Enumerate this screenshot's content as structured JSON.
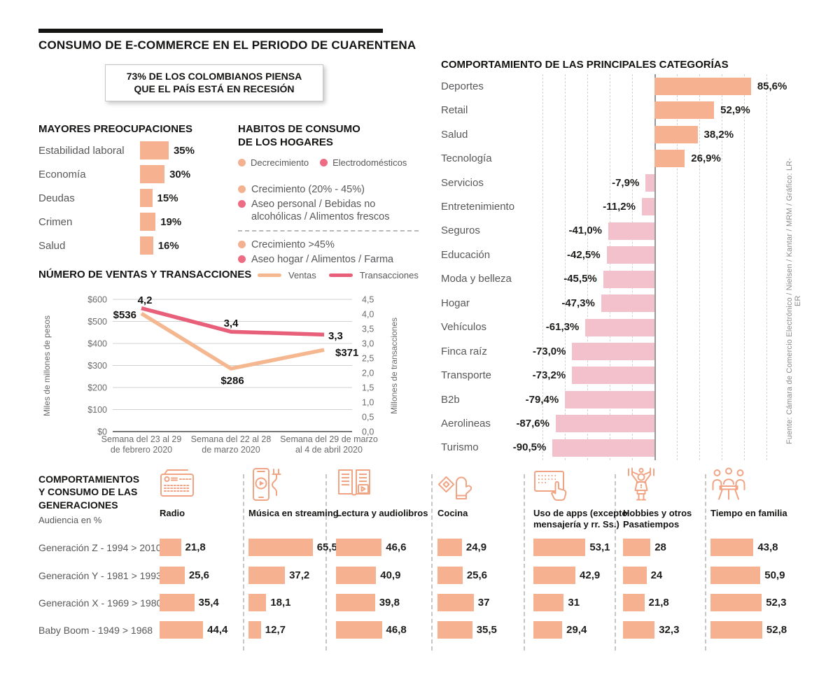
{
  "header": {
    "title": "CONSUMO DE E-COMMERCE EN EL PERIODO DE CUARENTENA",
    "recession_line1": "73% DE LOS COLOMBIANOS PIENSA",
    "recession_line2": "QUE EL PAÍS ESTÁ EN RECESIÓN"
  },
  "habits": {
    "title_line1": "HABITOS DE CONSUMO",
    "title_line2": "DE LOS HOGARES",
    "top_legend": [
      {
        "color": "peach",
        "label": "Decrecimiento"
      },
      {
        "color": "pink",
        "label": "Electrodomésticos"
      }
    ],
    "groups": [
      {
        "items": [
          {
            "color": "peach",
            "label": "Crecimiento (20% - 45%)"
          },
          {
            "color": "pink",
            "label": "Aseo personal /  Bebidas no alcohólicas / Alimentos frescos"
          }
        ]
      },
      {
        "items": [
          {
            "color": "peach",
            "label": "Crecimiento >45%"
          },
          {
            "color": "pink",
            "label": "Aseo hogar /  Alimentos / Farma"
          }
        ]
      }
    ]
  },
  "source_note": "Fuente: Cámara de Comercio Electrónico / Nielsen / Kantar / MRM / Gráfico: LR-ER",
  "colors": {
    "peach": "#F5B190",
    "peach_dot": "#F3B18F",
    "pink_dot": "#EE6B84",
    "pink_bar": "#F3C1CB",
    "ventas_line": "#F5B78F",
    "transacciones_line": "#E85F79",
    "icon_stroke": "#F0A483",
    "text_dark": "#141412",
    "text_gray": "#58585A"
  },
  "chart_data": [
    {
      "id": "concerns",
      "type": "bar",
      "orientation": "horizontal",
      "title": "MAYORES PREOCUPACIONES",
      "categories": [
        "Estabilidad laboral",
        "Economía",
        "Deudas",
        "Crimen",
        "Salud"
      ],
      "values": [
        35,
        30,
        15,
        19,
        16
      ],
      "value_labels": [
        "35%",
        "30%",
        "15%",
        "19%",
        "16%"
      ],
      "xlim": [
        0,
        100
      ]
    },
    {
      "id": "sales",
      "type": "line",
      "title": "NÚMERO DE VENTAS Y TRANSACCIONES",
      "x": [
        [
          "Semana del 23 al 29",
          "de febrero 2020"
        ],
        [
          "Semana del 22 al 28",
          "de marzo 2020"
        ],
        [
          "Semana del 29 de marzo",
          "al 4 de abril 2020"
        ]
      ],
      "series": [
        {
          "name": "Ventas",
          "axis": "left",
          "values": [
            536,
            286,
            371
          ],
          "labels": [
            "$536",
            "$286",
            "$371"
          ]
        },
        {
          "name": "Transacciones",
          "axis": "right",
          "values": [
            4.2,
            3.4,
            3.3
          ],
          "labels": [
            "4,2",
            "3,4",
            "3,3"
          ]
        }
      ],
      "left_axis": {
        "label": "Miles de millones de pesos",
        "min": 0,
        "max": 600,
        "ticks": [
          "$600",
          "$500",
          "$400",
          "$300",
          "$200",
          "$100",
          "$0"
        ]
      },
      "right_axis": {
        "label": "Millones de transacciones",
        "min": 0,
        "max": 4.5,
        "ticks": [
          "4,5",
          "4,0",
          "3,5",
          "3,0",
          "2,5",
          "2,0",
          "1,5",
          "1,0",
          "0,5",
          "0,0"
        ]
      },
      "grid": true,
      "legend_position": "top-right"
    },
    {
      "id": "categories",
      "type": "bar",
      "orientation": "horizontal",
      "title": "COMPORTAMIENTO DE LAS PRINCIPALES CATEGORÍAS",
      "categories": [
        "Deportes",
        "Retail",
        "Salud",
        "Tecnología",
        "Servicios",
        "Entretenimiento",
        "Seguros",
        "Educación",
        "Moda y belleza",
        "Hogar",
        "Vehículos",
        "Finca raíz",
        "Transporte",
        "B2b",
        "Aerolineas",
        "Turismo"
      ],
      "values": [
        85.6,
        52.9,
        38.2,
        26.9,
        -7.9,
        -11.2,
        -41.0,
        -42.5,
        -45.5,
        -47.3,
        -61.3,
        -73.0,
        -73.2,
        -79.4,
        -87.6,
        -90.5
      ],
      "value_labels": [
        "85,6%",
        "52,9%",
        "38,2%",
        "26,9%",
        "-7,9%",
        "-11,2%",
        "-41,0%",
        "-42,5%",
        "-45,5%",
        "-47,3%",
        "-61,3%",
        "-73,0%",
        "-73,2%",
        "-79,4%",
        "-87,6%",
        "-90,5%"
      ],
      "xlim": [
        -100,
        100
      ],
      "grid": true
    },
    {
      "id": "generations",
      "type": "bar",
      "orientation": "horizontal",
      "title_lines": [
        "COMPORTAMIENTOS",
        "Y CONSUMO DE LAS",
        "GENERACIONES"
      ],
      "subtitle": "Audiencia en %",
      "rows": [
        "Generación Z - 1994 > 2010",
        "Generación Y - 1981 > 1993",
        "Generación X - 1969 > 1980",
        "Baby Boom - 1949 > 1968"
      ],
      "series": [
        {
          "name": "Radio",
          "icon": "radio-icon",
          "values": [
            21.8,
            25.6,
            35.4,
            44.4
          ],
          "value_labels": [
            "21,8",
            "25,6",
            "35,4",
            "44,4"
          ]
        },
        {
          "name": "Música en streaming",
          "icon": "music-streaming-icon",
          "values": [
            65.5,
            37.2,
            18.1,
            12.7
          ],
          "value_labels": [
            "65,5",
            "37,2",
            "18,1",
            "12,7"
          ]
        },
        {
          "name": "Lectura y audiolibros",
          "icon": "reading-audiobooks-icon",
          "values": [
            46.6,
            40.9,
            39.8,
            46.8
          ],
          "value_labels": [
            "46,6",
            "40,9",
            "39,8",
            "46,8"
          ]
        },
        {
          "name": "Cocina",
          "icon": "cooking-icon",
          "values": [
            24.9,
            25.6,
            37,
            35.5
          ],
          "value_labels": [
            "24,9",
            "25,6",
            "37",
            "35,5"
          ]
        },
        {
          "name": "Uso de apps (excepto mensajería y rr. Ss.)",
          "icon": "apps-usage-icon",
          "values": [
            53.1,
            42.9,
            31,
            29.4
          ],
          "value_labels": [
            "53,1",
            "42,9",
            "31",
            "29,4"
          ]
        },
        {
          "name": "Hobbies y otros Pasatiempos",
          "icon": "hobbies-icon",
          "values": [
            28,
            24,
            21.8,
            32.3
          ],
          "value_labels": [
            "28",
            "24",
            "21,8",
            "32,3"
          ]
        },
        {
          "name": "Tiempo en familia",
          "icon": "family-time-icon",
          "values": [
            43.8,
            50.9,
            52.3,
            52.8
          ],
          "value_labels": [
            "43,8",
            "50,9",
            "52,3",
            "52,8"
          ]
        }
      ]
    }
  ]
}
